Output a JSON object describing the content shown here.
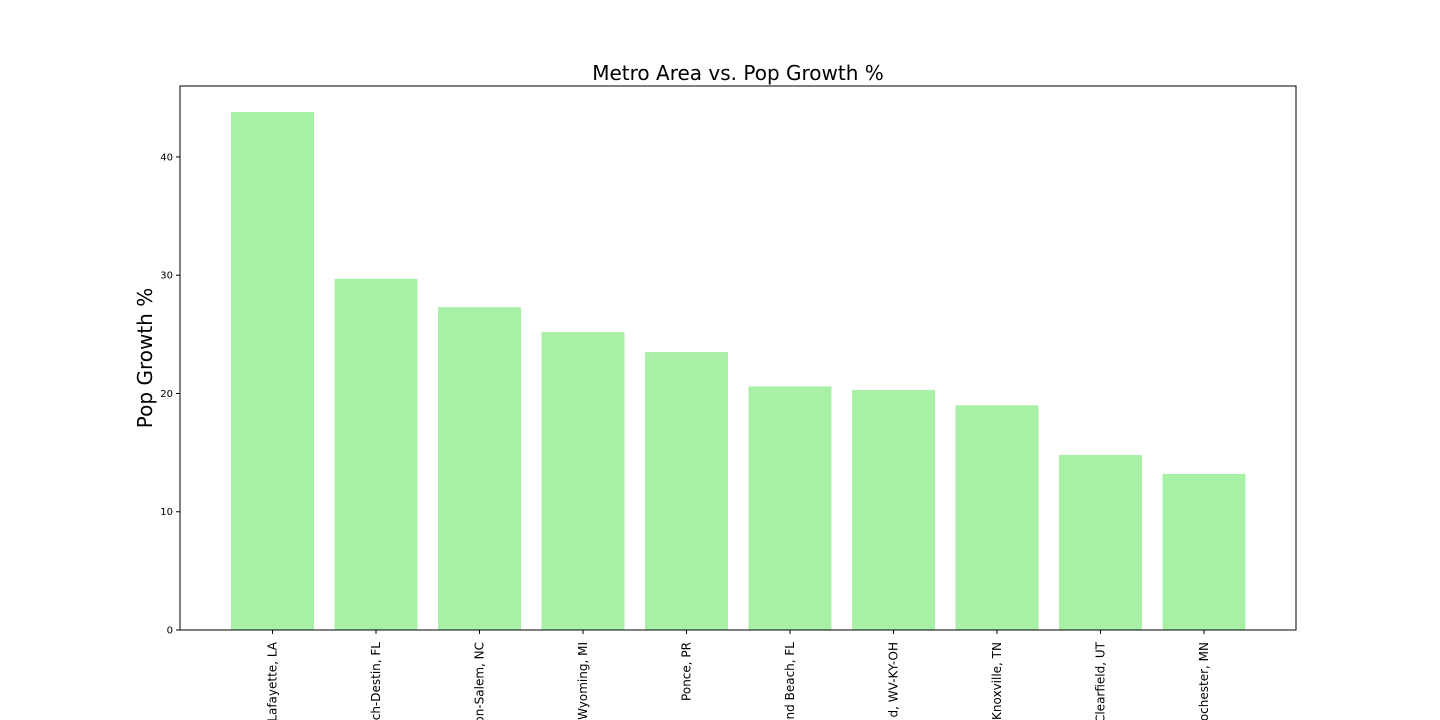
{
  "chart_data": {
    "type": "bar",
    "title": "Metro Area vs. Pop Growth %",
    "xlabel": "",
    "ylabel": "Pop Growth %",
    "categories": [
      "Lafayette, LA",
      "ch-Destin, FL",
      "on-Salem, NC",
      "Wyoming, MI",
      "Ponce, PR",
      "nd Beach, FL",
      "d, WV-KY-OH",
      "Knoxville, TN",
      "Clearfield, UT",
      "ochester, MN"
    ],
    "values": [
      43.8,
      29.7,
      27.3,
      25.2,
      23.5,
      20.6,
      20.3,
      19.0,
      14.8,
      13.2
    ],
    "ylim": [
      0,
      46
    ],
    "yticks": [
      0,
      10,
      20,
      30,
      40
    ],
    "bar_color": "#a8f0a5",
    "grid": false,
    "legend": "none"
  }
}
